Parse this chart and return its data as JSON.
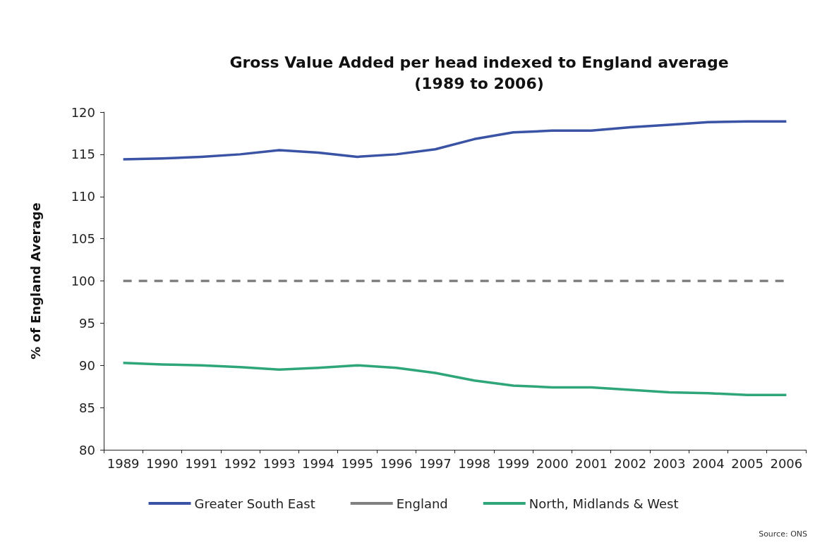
{
  "chart_data": {
    "type": "line",
    "title": "Gross Value Added per head indexed to England average\n(1989 to 2006)",
    "ylabel": "% of England Average",
    "categories": [
      "1989",
      "1990",
      "1991",
      "1992",
      "1993",
      "1994",
      "1995",
      "1996",
      "1997",
      "1998",
      "1999",
      "2000",
      "2001",
      "2002",
      "2003",
      "2004",
      "2005",
      "2006"
    ],
    "series": [
      {
        "name": "Greater South East",
        "color": "#3a53a4",
        "line_style": "solid",
        "values": [
          114.4,
          114.5,
          114.7,
          115.0,
          115.5,
          115.2,
          114.7,
          115.0,
          115.6,
          116.8,
          117.6,
          117.8,
          117.8,
          118.2,
          118.5,
          118.8,
          118.9,
          118.9
        ]
      },
      {
        "name": "England",
        "color": "#808080",
        "line_style": "dashed",
        "values": [
          100,
          100,
          100,
          100,
          100,
          100,
          100,
          100,
          100,
          100,
          100,
          100,
          100,
          100,
          100,
          100,
          100,
          100
        ]
      },
      {
        "name": "North, Midlands & West",
        "color": "#2ea67a",
        "line_style": "solid",
        "values": [
          90.3,
          90.1,
          90.0,
          89.8,
          89.5,
          89.7,
          90.0,
          89.7,
          89.1,
          88.2,
          87.6,
          87.4,
          87.4,
          87.1,
          86.8,
          86.7,
          86.5,
          86.5
        ]
      }
    ],
    "ylim": [
      80,
      120
    ],
    "yticks": [
      80,
      85,
      90,
      95,
      100,
      105,
      110,
      115,
      120
    ],
    "grid": false,
    "legend": "bottom",
    "marker": "none",
    "annotations": [
      "Source: ONS"
    ]
  }
}
